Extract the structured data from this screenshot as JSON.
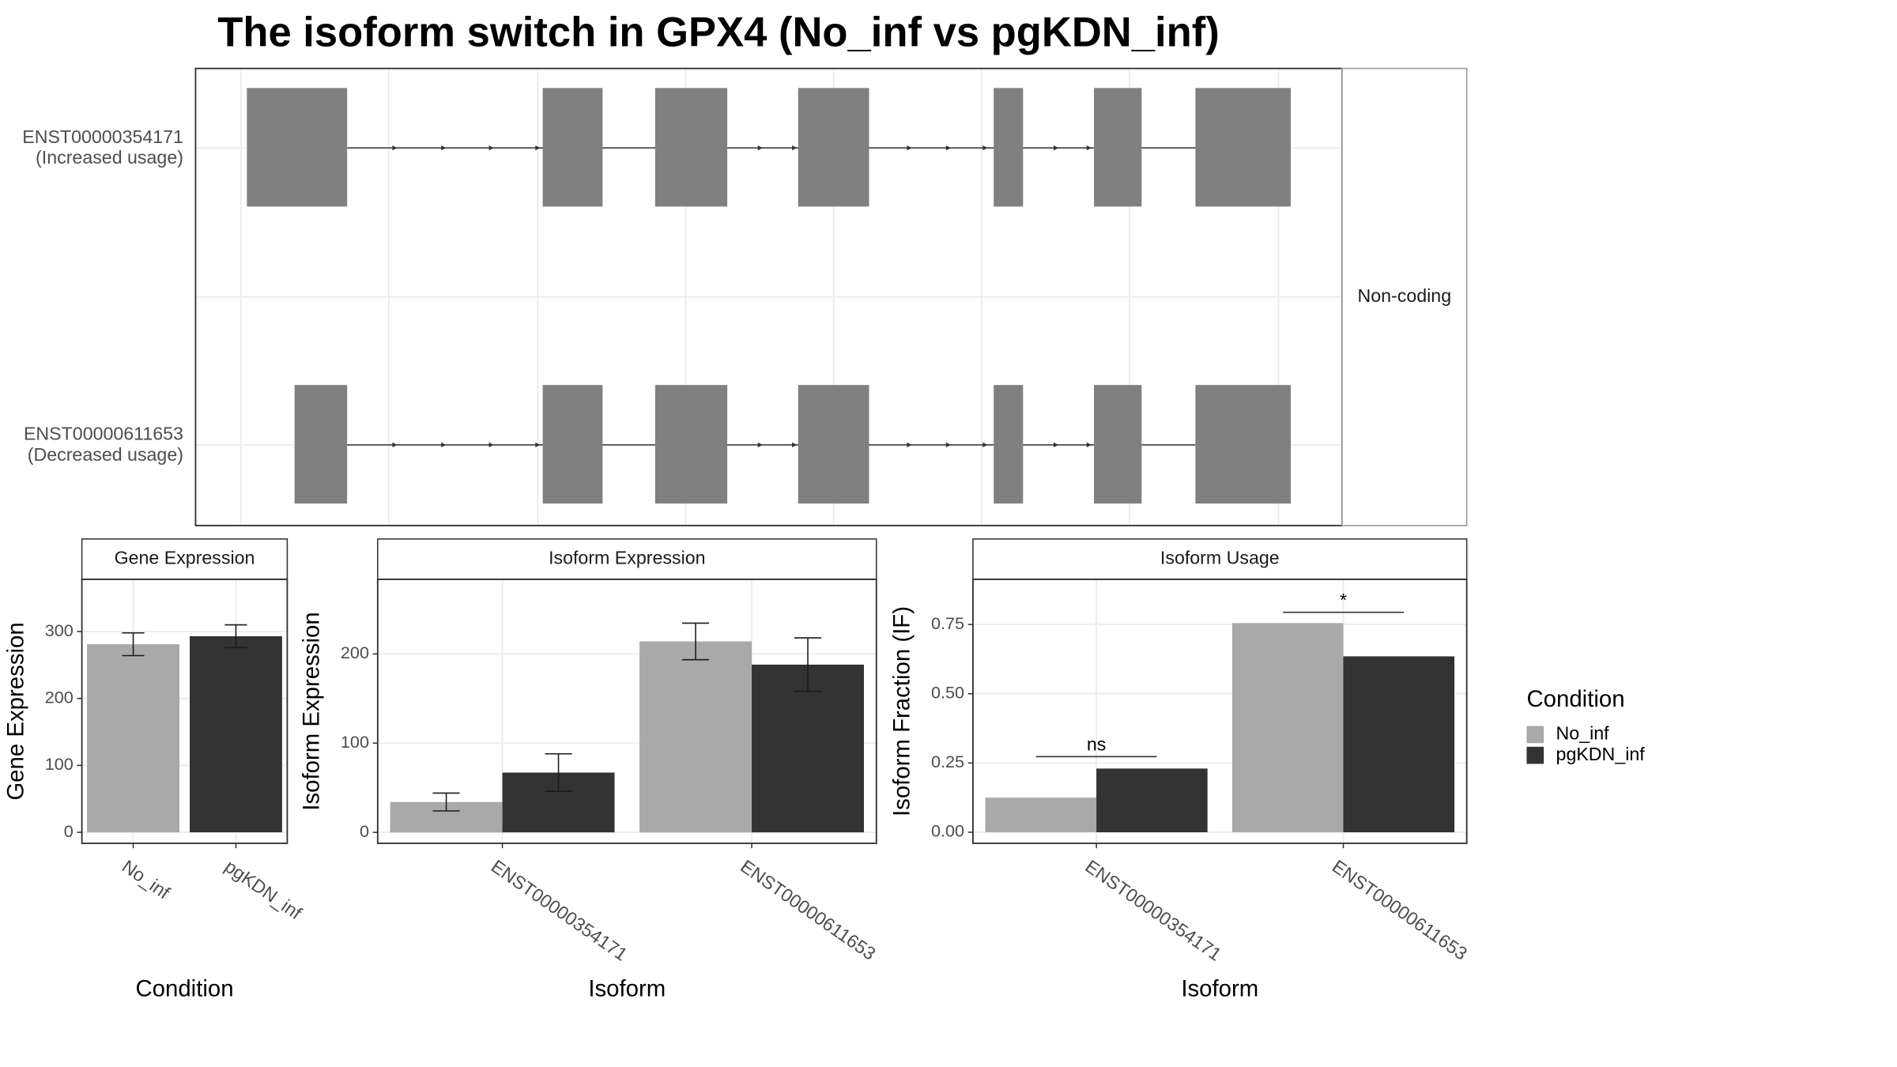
{
  "title": "The isoform switch in GPX4 (No_inf vs pgKDN_inf)",
  "structure": {
    "facet": "Non-coding",
    "transcripts": [
      {
        "id": "ENST00000354171",
        "note": "(Increased usage)"
      },
      {
        "id": "ENST00000611653",
        "note": "(Decreased usage)"
      }
    ]
  },
  "legend": {
    "title": "Condition"
  },
  "chart_data": [
    {
      "type": "bar",
      "facet": "Gene Expression",
      "xlabel": "Condition",
      "ylabel": "Gene Expression",
      "categories": [
        "No_inf",
        "pgKDN_inf"
      ],
      "values": [
        281,
        293
      ],
      "errors": [
        17,
        17
      ],
      "colors": [
        "#a9a9a9",
        "#333333"
      ],
      "ylim": [
        -16.5,
        378
      ],
      "yticks": [
        0,
        100,
        200,
        300
      ],
      "grid": true
    },
    {
      "type": "bar",
      "facet": "Isoform Expression",
      "xlabel": "Isoform",
      "ylabel": "Isoform Expression",
      "categories": [
        "ENST00000354171",
        "ENST00000611653"
      ],
      "series": [
        {
          "name": "No_inf",
          "color": "#a9a9a9",
          "values": [
            34,
            214
          ],
          "errors": [
            10,
            20.5
          ]
        },
        {
          "name": "pgKDN_inf",
          "color": "#333333",
          "values": [
            67,
            188
          ],
          "errors": [
            21,
            30
          ]
        }
      ],
      "ylim": [
        -12.3,
        283.6
      ],
      "yticks": [
        0,
        100,
        200
      ],
      "grid": true
    },
    {
      "type": "bar",
      "facet": "Isoform Usage",
      "xlabel": "Isoform",
      "ylabel": "Isoform Fraction (IF)",
      "categories": [
        "ENST00000354171",
        "ENST00000611653"
      ],
      "series": [
        {
          "name": "No_inf",
          "color": "#a9a9a9",
          "values": [
            0.125,
            0.755
          ]
        },
        {
          "name": "pgKDN_inf",
          "color": "#333333",
          "values": [
            0.23,
            0.635
          ]
        }
      ],
      "significance": [
        {
          "label": "ns",
          "value": 0.273
        },
        {
          "label": "*",
          "value": 0.794
        }
      ],
      "ylim": [
        -0.04,
        0.913
      ],
      "yticks": [
        {
          "value": 0,
          "label": "0.00"
        },
        {
          "value": 0.25,
          "label": "0.25"
        },
        {
          "value": 0.5,
          "label": "0.50"
        },
        {
          "value": 0.75,
          "label": "0.75"
        }
      ],
      "grid": true
    }
  ]
}
